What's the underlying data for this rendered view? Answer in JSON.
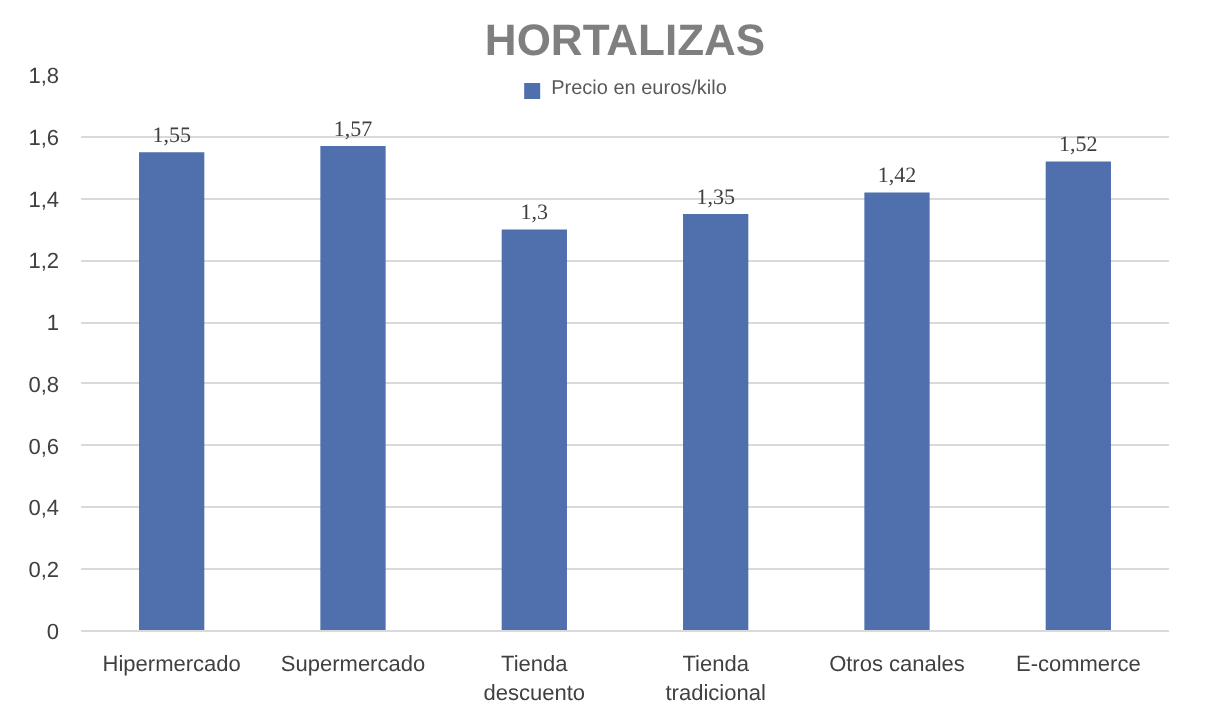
{
  "chart_data": {
    "type": "bar",
    "title": "HORTALIZAS",
    "categories": [
      "Hipermercado",
      "Supermercado",
      "Tienda\ndescuento",
      "Tienda\ntradicional",
      "Otros canales",
      "E-commerce"
    ],
    "series": [
      {
        "name": "Precio en euros/kilo",
        "color": "#4f6fad",
        "values": [
          1.55,
          1.57,
          1.3,
          1.35,
          1.42,
          1.52
        ],
        "value_labels": [
          "1,55",
          "1,57",
          "1,3",
          "1,35",
          "1,42",
          "1,52"
        ]
      }
    ],
    "ylim": [
      0,
      1.8
    ],
    "yticks": [
      0,
      {
        "value": 0.2,
        "label": "0,2"
      },
      {
        "value": 0.4,
        "label": "0,4"
      },
      {
        "value": 0.6,
        "label": "0,6"
      },
      {
        "value": 0.8,
        "label": "0,8"
      },
      1,
      {
        "value": 1.2,
        "label": "1,2"
      },
      {
        "value": 1.4,
        "label": "1,4"
      },
      {
        "value": 1.6,
        "label": "1,6"
      },
      {
        "value": 1.8,
        "label": "1,8"
      }
    ],
    "grid": "y",
    "legend": "top"
  }
}
